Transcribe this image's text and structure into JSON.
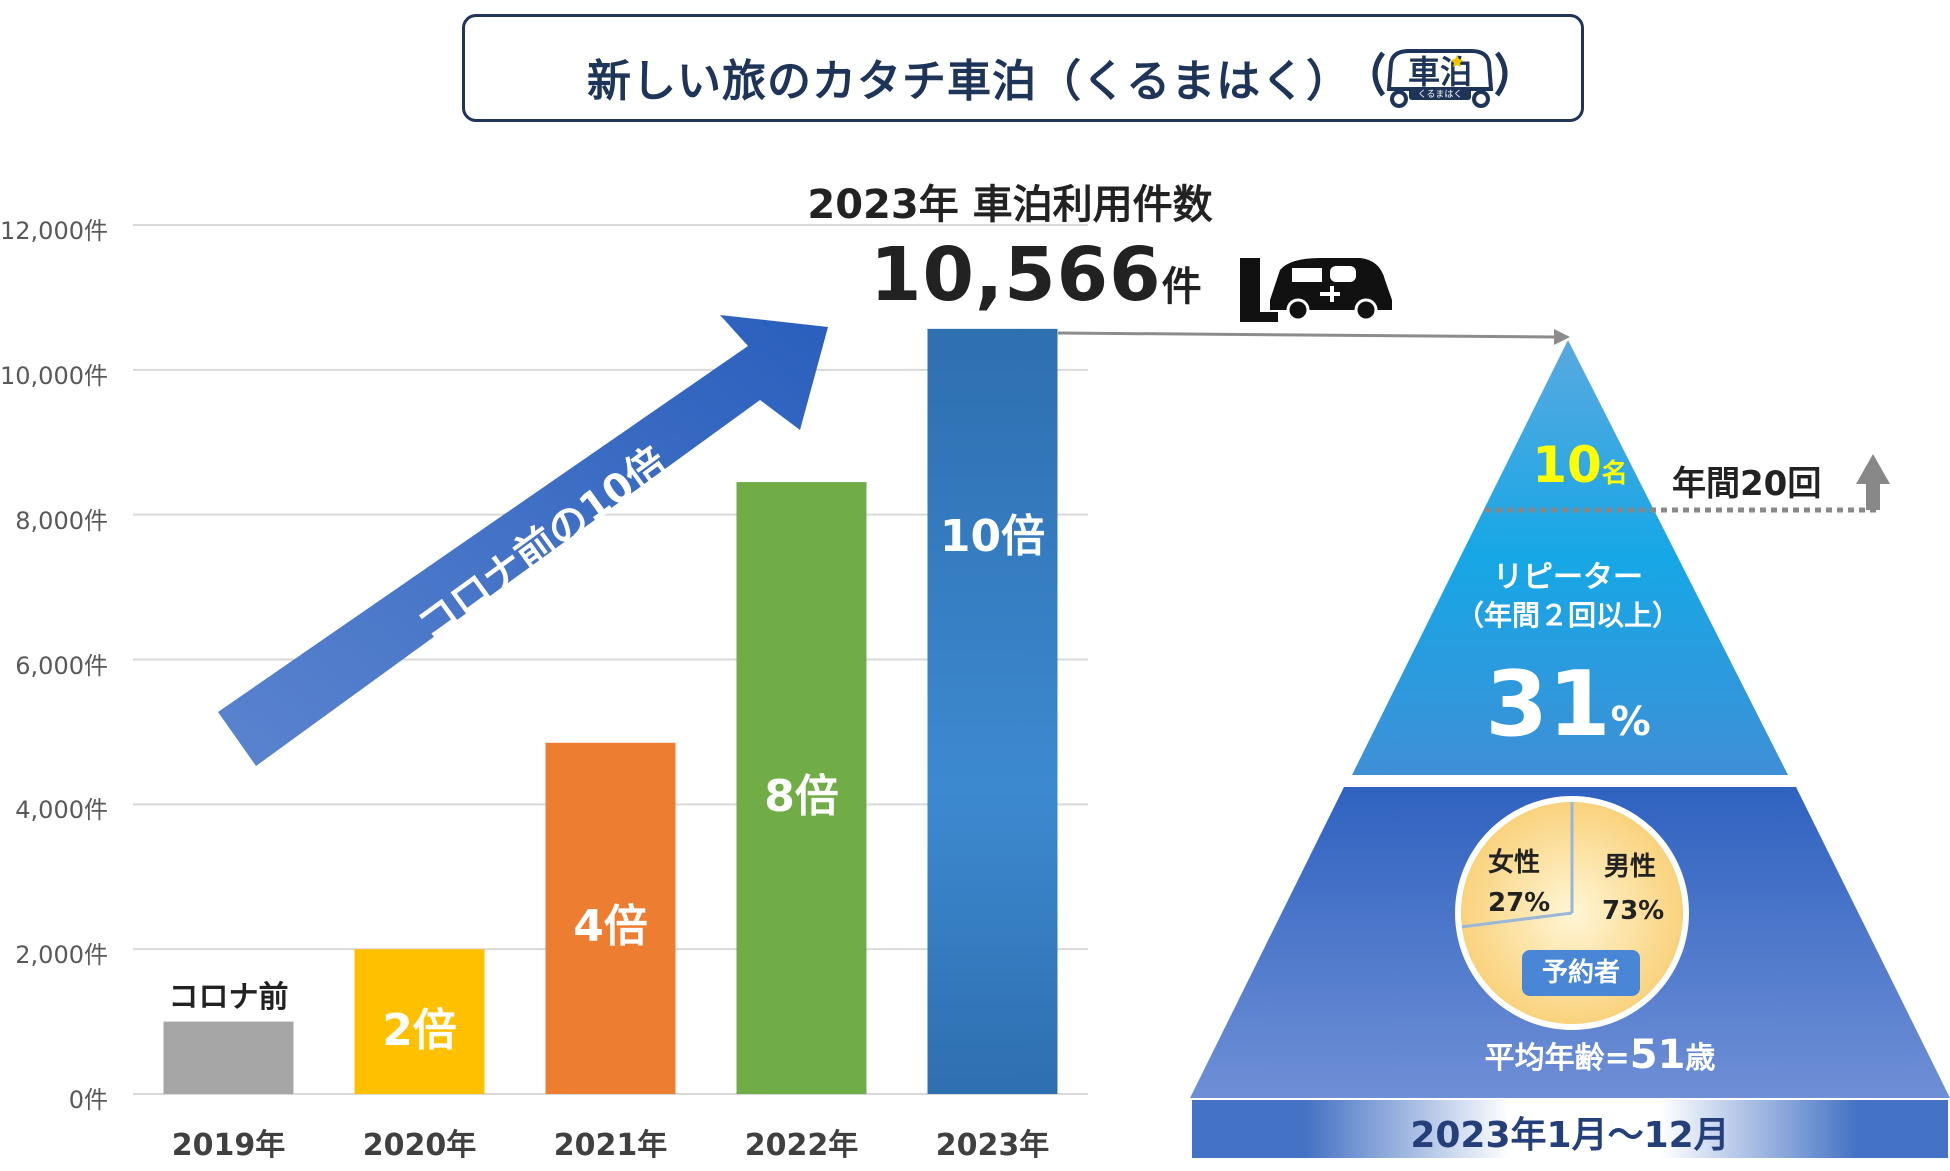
{
  "header": {
    "title": "新しい旅のカタチ車泊（くるまはく）",
    "logo_text": "車泊",
    "logo_sub": "くるまはく"
  },
  "chart_head": {
    "title": "2023年 車泊利用件数",
    "total_value": "10,566",
    "total_unit": "件"
  },
  "chart_data": {
    "type": "bar",
    "categories": [
      "2019年",
      "2020年",
      "2021年",
      "2022年",
      "2023年"
    ],
    "values": [
      1000,
      2000,
      4850,
      8450,
      10566
    ],
    "bar_labels": [
      "コロナ前",
      "2倍",
      "4倍",
      "8倍",
      "10倍"
    ],
    "bar_colors": [
      "#a6a6a6",
      "#ffc000",
      "#ed7d31",
      "#70ad47",
      "#2e75b6"
    ],
    "ylim": [
      0,
      12000
    ],
    "yticks": [
      0,
      2000,
      4000,
      6000,
      8000,
      10000,
      12000
    ],
    "ytick_labels": [
      "0件",
      "2,000件",
      "4,000件",
      "6,000件",
      "8,000件",
      "10,000件",
      "12,000件"
    ],
    "grid": true,
    "annotation": "コロナ前の10倍"
  },
  "pyramid": {
    "top_value": "10",
    "top_unit": "名",
    "annual_label": "年間20回",
    "repeater_label": "リピーター",
    "repeater_sub": "（年間２回以上）",
    "repeater_value": "31",
    "repeater_unit": "%",
    "pie": {
      "female_label": "女性",
      "female_value": "27%",
      "male_label": "男性",
      "male_value": "73%",
      "female_fraction": 0.27,
      "badge": "予約者"
    },
    "avg_age_label": "平均年齢=",
    "avg_age_value": "51",
    "avg_age_unit": "歳",
    "period": "2023年1月～12月"
  },
  "colors": {
    "title_navy": "#1e3458",
    "arrow_blue": "#3a6fc4",
    "pyramid_top": "#56a8e4",
    "pyramid_bottom": "#4472c4",
    "highlight_yellow": "#ffff00"
  }
}
